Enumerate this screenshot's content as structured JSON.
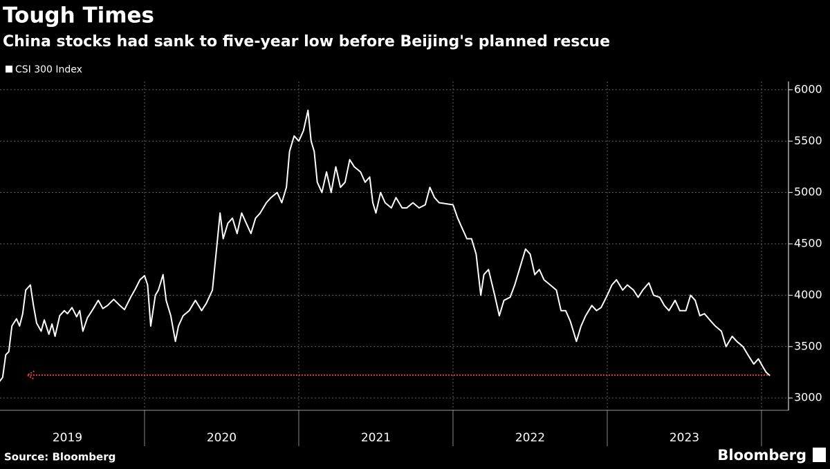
{
  "chart_data": {
    "type": "line",
    "title": "Tough Times",
    "subtitle": "China stocks had sank to five-year low before Beijing's planned rescue",
    "source": "Source: Bloomberg",
    "logo": "Bloomberg",
    "series": [
      {
        "name": "CSI 300 Index",
        "color": "#ffffff",
        "x": [
          2019.06,
          2019.08,
          2019.1,
          2019.12,
          2019.14,
          2019.17,
          2019.19,
          2019.21,
          2019.23,
          2019.26,
          2019.28,
          2019.3,
          2019.33,
          2019.35,
          2019.38,
          2019.4,
          2019.42,
          2019.45,
          2019.48,
          2019.5,
          2019.53,
          2019.56,
          2019.58,
          2019.6,
          2019.63,
          2019.66,
          2019.7,
          2019.73,
          2019.76,
          2019.8,
          2019.84,
          2019.87,
          2019.91,
          2019.94,
          2019.97,
          2020.0,
          2020.02,
          2020.04,
          2020.07,
          2020.09,
          2020.12,
          2020.14,
          2020.17,
          2020.2,
          2020.22,
          2020.25,
          2020.29,
          2020.33,
          2020.37,
          2020.4,
          2020.44,
          2020.47,
          2020.49,
          2020.51,
          2020.54,
          2020.57,
          2020.6,
          2020.63,
          2020.66,
          2020.69,
          2020.72,
          2020.75,
          2020.79,
          2020.82,
          2020.86,
          2020.89,
          2020.92,
          2020.94,
          2020.97,
          2021.0,
          2021.03,
          2021.06,
          2021.08,
          2021.1,
          2021.12,
          2021.15,
          2021.18,
          2021.21,
          2021.24,
          2021.27,
          2021.3,
          2021.33,
          2021.36,
          2021.4,
          2021.43,
          2021.46,
          2021.48,
          2021.5,
          2021.53,
          2021.56,
          2021.6,
          2021.63,
          2021.67,
          2021.7,
          2021.74,
          2021.78,
          2021.82,
          2021.85,
          2021.88,
          2021.91,
          2022.0,
          2022.03,
          2022.06,
          2022.09,
          2022.12,
          2022.15,
          2022.18,
          2022.2,
          2022.23,
          2022.27,
          2022.3,
          2022.33,
          2022.37,
          2022.4,
          2022.43,
          2022.47,
          2022.5,
          2022.53,
          2022.56,
          2022.59,
          2022.63,
          2022.67,
          2022.7,
          2022.73,
          2022.76,
          2022.8,
          2022.83,
          2022.86,
          2022.9,
          2022.93,
          2022.96,
          2023.0,
          2023.03,
          2023.06,
          2023.1,
          2023.13,
          2023.17,
          2023.2,
          2023.23,
          2023.27,
          2023.3,
          2023.34,
          2023.37,
          2023.4,
          2023.44,
          2023.47,
          2023.51,
          2023.54,
          2023.57,
          2023.6,
          2023.63,
          2023.67,
          2023.7,
          2023.74,
          2023.77,
          2023.81,
          2023.84,
          2023.88,
          2023.92,
          2023.95,
          2023.98,
          2024.01,
          2024.03,
          2024.055
        ],
        "values": [
          3160,
          3200,
          3420,
          3450,
          3700,
          3770,
          3700,
          3820,
          4050,
          4100,
          3900,
          3730,
          3650,
          3760,
          3620,
          3720,
          3600,
          3800,
          3850,
          3820,
          3880,
          3790,
          3850,
          3650,
          3780,
          3850,
          3950,
          3870,
          3900,
          3960,
          3900,
          3860,
          3980,
          4060,
          4150,
          4190,
          4100,
          3700,
          4000,
          4050,
          4200,
          3950,
          3800,
          3550,
          3700,
          3800,
          3850,
          3950,
          3850,
          3920,
          4050,
          4500,
          4800,
          4550,
          4700,
          4750,
          4600,
          4800,
          4700,
          4600,
          4750,
          4800,
          4900,
          4950,
          5000,
          4900,
          5050,
          5400,
          5550,
          5500,
          5600,
          5800,
          5500,
          5400,
          5100,
          5000,
          5200,
          5000,
          5250,
          5050,
          5100,
          5320,
          5250,
          5200,
          5100,
          5150,
          4900,
          4800,
          5000,
          4900,
          4850,
          4950,
          4850,
          4850,
          4900,
          4850,
          4880,
          5050,
          4950,
          4900,
          4880,
          4750,
          4650,
          4550,
          4550,
          4400,
          4000,
          4200,
          4250,
          4000,
          3800,
          3950,
          3980,
          4100,
          4250,
          4450,
          4400,
          4200,
          4250,
          4150,
          4100,
          4050,
          3850,
          3850,
          3750,
          3550,
          3700,
          3800,
          3900,
          3850,
          3880,
          4000,
          4100,
          4150,
          4050,
          4100,
          4050,
          3980,
          4050,
          4120,
          4000,
          3980,
          3900,
          3850,
          3950,
          3850,
          3850,
          4000,
          3950,
          3800,
          3820,
          3750,
          3700,
          3650,
          3500,
          3600,
          3550,
          3500,
          3400,
          3330,
          3380,
          3300,
          3250,
          3217
        ]
      }
    ],
    "reference_line": {
      "value": 3222,
      "from": 2024.04,
      "to": 2019.24,
      "color": "#e8403a"
    },
    "xlim": [
      2019.063,
      2024.175
    ],
    "xticks": [
      {
        "value": 2019.5,
        "label": "2019"
      },
      {
        "value": 2020.5,
        "label": "2020"
      },
      {
        "value": 2021.5,
        "label": "2021"
      },
      {
        "value": 2022.5,
        "label": "2022"
      },
      {
        "value": 2023.5,
        "label": "2023"
      }
    ],
    "x_separators": [
      2020,
      2021,
      2022,
      2023,
      2024
    ],
    "ylim": [
      2880,
      6080
    ],
    "yticks": [
      3000,
      3500,
      4000,
      4500,
      5000,
      5500,
      6000
    ],
    "grid": true
  }
}
